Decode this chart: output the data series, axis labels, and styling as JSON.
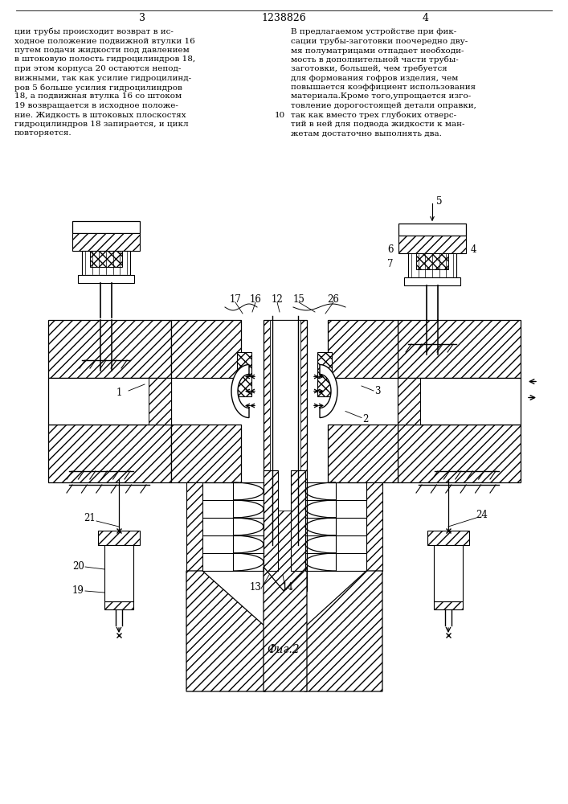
{
  "title_number": "1238826",
  "page_left": "3",
  "page_right": "4",
  "figure_caption": "Фиг.2",
  "bg_color": "#ffffff",
  "text_color": "#000000"
}
